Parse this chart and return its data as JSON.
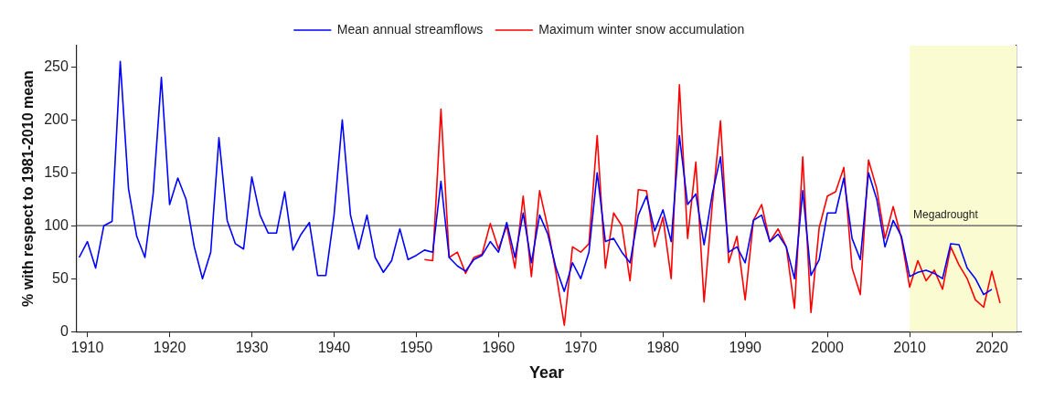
{
  "chart_data": {
    "type": "line",
    "xlabel": "Year",
    "ylabel": "% with respect to 1981-2010 mean",
    "xlim": [
      1908.7,
      2023
    ],
    "xticks": [
      1910,
      1920,
      1930,
      1940,
      1950,
      1960,
      1970,
      1980,
      1990,
      2000,
      2010,
      2020
    ],
    "ylim": [
      0,
      270
    ],
    "yticks": [
      0,
      50,
      100,
      150,
      200,
      250
    ],
    "grid": false,
    "legend": "top",
    "marker": "none",
    "line_style": "solid",
    "series": [
      {
        "name": "Mean annual streamflows",
        "color": "#0000ff",
        "x": [
          1909,
          1910,
          1911,
          1912,
          1913,
          1914,
          1915,
          1916,
          1917,
          1918,
          1919,
          1920,
          1921,
          1922,
          1923,
          1924,
          1925,
          1926,
          1927,
          1928,
          1929,
          1930,
          1931,
          1932,
          1933,
          1934,
          1935,
          1936,
          1937,
          1938,
          1939,
          1940,
          1941,
          1942,
          1943,
          1944,
          1945,
          1946,
          1947,
          1948,
          1949,
          1950,
          1951,
          1952,
          1953,
          1954,
          1955,
          1956,
          1957,
          1958,
          1959,
          1960,
          1961,
          1962,
          1963,
          1964,
          1965,
          1966,
          1967,
          1968,
          1969,
          1970,
          1971,
          1972,
          1973,
          1974,
          1975,
          1976,
          1977,
          1978,
          1979,
          1980,
          1981,
          1982,
          1983,
          1984,
          1985,
          1986,
          1987,
          1988,
          1989,
          1990,
          1991,
          1992,
          1993,
          1994,
          1995,
          1996,
          1997,
          1998,
          1999,
          2000,
          2001,
          2002,
          2003,
          2004,
          2005,
          2006,
          2007,
          2008,
          2009,
          2010,
          2011,
          2012,
          2013,
          2014,
          2015,
          2016,
          2017,
          2018,
          2019,
          2020
        ],
        "values": [
          70,
          85,
          60,
          100,
          104,
          255,
          135,
          90,
          70,
          130,
          240,
          120,
          145,
          125,
          80,
          50,
          75,
          183,
          105,
          83,
          78,
          146,
          110,
          93,
          93,
          132,
          77,
          92,
          103,
          53,
          53,
          110,
          200,
          110,
          78,
          110,
          70,
          56,
          67,
          97,
          68,
          72,
          77,
          75,
          142,
          70,
          62,
          57,
          68,
          72,
          85,
          75,
          103,
          70,
          112,
          65,
          110,
          92,
          60,
          38,
          65,
          50,
          75,
          150,
          85,
          88,
          75,
          65,
          110,
          128,
          95,
          115,
          85,
          185,
          120,
          130,
          82,
          130,
          165,
          75,
          80,
          65,
          105,
          110,
          85,
          92,
          80,
          50,
          133,
          53,
          68,
          112,
          112,
          145,
          88,
          68,
          150,
          125,
          80,
          105,
          90,
          52,
          56,
          58,
          55,
          50,
          83,
          82,
          60,
          50,
          35,
          40
        ]
      },
      {
        "name": "Maximum winter snow accumulation",
        "color": "#ff0000",
        "x": [
          1951,
          1952,
          1953,
          1954,
          1955,
          1956,
          1957,
          1958,
          1959,
          1960,
          1961,
          1962,
          1963,
          1964,
          1965,
          1966,
          1967,
          1968,
          1969,
          1970,
          1971,
          1972,
          1973,
          1974,
          1975,
          1976,
          1977,
          1978,
          1979,
          1980,
          1981,
          1982,
          1983,
          1984,
          1985,
          1986,
          1987,
          1988,
          1989,
          1990,
          1991,
          1992,
          1993,
          1994,
          1995,
          1996,
          1997,
          1998,
          1999,
          2000,
          2001,
          2002,
          2003,
          2004,
          2005,
          2006,
          2007,
          2008,
          2009,
          2010,
          2011,
          2012,
          2013,
          2014,
          2015,
          2016,
          2017,
          2018,
          2019,
          2020,
          2021
        ],
        "values": [
          68,
          67,
          210,
          70,
          75,
          55,
          70,
          73,
          102,
          78,
          100,
          60,
          128,
          52,
          133,
          98,
          55,
          6,
          80,
          75,
          83,
          185,
          60,
          112,
          100,
          48,
          134,
          133,
          80,
          108,
          50,
          233,
          88,
          160,
          28,
          120,
          199,
          65,
          90,
          30,
          105,
          120,
          85,
          97,
          80,
          22,
          165,
          18,
          98,
          128,
          132,
          155,
          60,
          35,
          162,
          135,
          88,
          118,
          88,
          42,
          67,
          48,
          58,
          40,
          80,
          63,
          50,
          30,
          23,
          57,
          27
        ]
      }
    ],
    "ref_lines": [
      {
        "axis": "y",
        "value": 100,
        "color": "#555555"
      }
    ],
    "bands": [
      {
        "axis": "x",
        "from": 2010,
        "to": 2023,
        "label": "Megadrought",
        "color": "#fbfbd2"
      }
    ]
  }
}
